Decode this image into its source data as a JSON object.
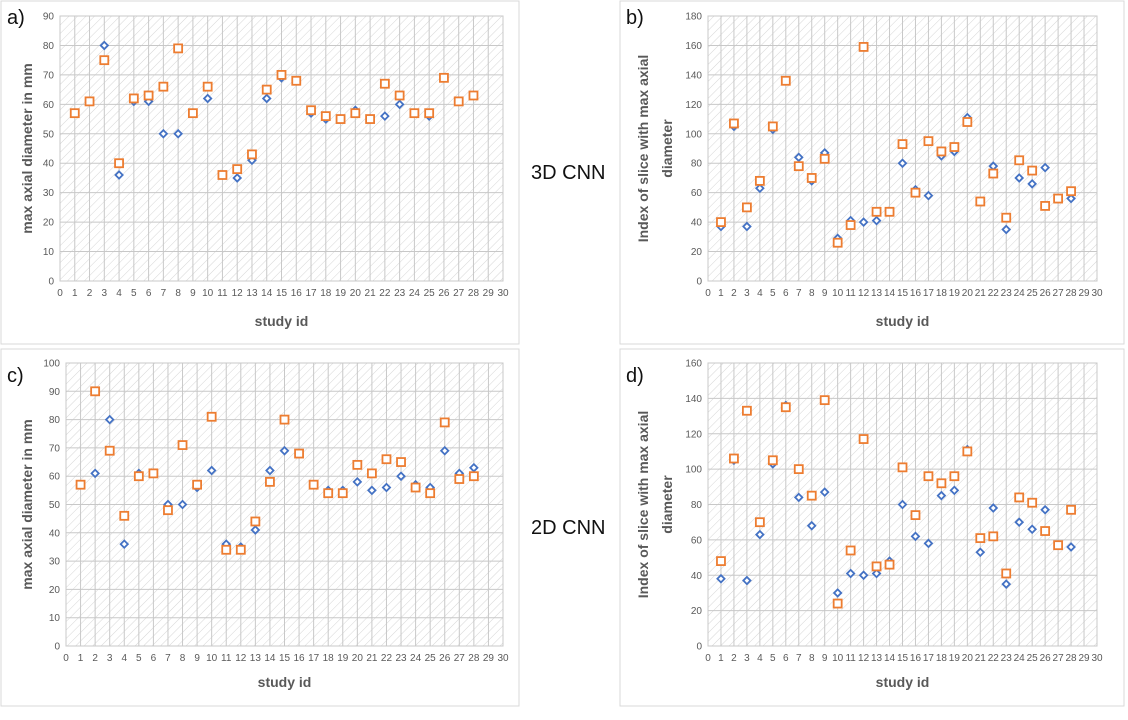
{
  "colors": {
    "blue": "#4472c4",
    "orange": "#ed7d31",
    "grid": "#c8c8c8",
    "panel_border": "#d9d9d9",
    "text": "#595959"
  },
  "middle_labels": [
    "3D CNN",
    "2D CNN"
  ],
  "chart_data": [
    {
      "type": "scatter",
      "panel_label": "a)",
      "xlabel": "study id",
      "ylabel": "max axial diameter in mm",
      "xlim": [
        0,
        30
      ],
      "ylim": [
        0,
        90
      ],
      "ytick_step": 10,
      "x_ticks": [
        "0",
        "1",
        "2",
        "3",
        "4",
        "5",
        "6",
        "7",
        "8",
        "9",
        "10",
        "11",
        "12",
        "13",
        "14",
        "15",
        "16",
        "17",
        "18",
        "19",
        "20",
        "21",
        "22",
        "23",
        "24",
        "25",
        "26",
        "27",
        "28",
        "29",
        "30"
      ],
      "y_ticks": [
        "0",
        "10",
        "20",
        "30",
        "40",
        "50",
        "60",
        "70",
        "80",
        "90"
      ],
      "series": [
        {
          "name": "blue",
          "marker": "diamond",
          "x": [
            1,
            2,
            3,
            4,
            5,
            6,
            7,
            8,
            9,
            10,
            11,
            12,
            13,
            14,
            15,
            16,
            17,
            18,
            19,
            20,
            21,
            22,
            23,
            24,
            25,
            26,
            27,
            28
          ],
          "y": [
            57,
            61,
            80,
            36,
            61,
            61,
            50,
            50,
            57,
            62,
            36,
            35,
            41,
            62,
            69,
            68,
            57,
            55,
            55,
            58,
            55,
            56,
            60,
            57,
            56,
            69,
            61,
            63
          ]
        },
        {
          "name": "orange",
          "marker": "square",
          "x": [
            1,
            2,
            3,
            4,
            5,
            6,
            7,
            8,
            9,
            10,
            11,
            12,
            13,
            14,
            15,
            16,
            17,
            18,
            19,
            20,
            21,
            22,
            23,
            24,
            25,
            26,
            27,
            28
          ],
          "y": [
            57,
            61,
            75,
            40,
            62,
            63,
            66,
            79,
            57,
            66,
            36,
            38,
            43,
            65,
            70,
            68,
            58,
            56,
            55,
            57,
            55,
            67,
            63,
            57,
            57,
            69,
            61,
            63
          ]
        }
      ]
    },
    {
      "type": "scatter",
      "panel_label": "b)",
      "xlabel": "study id",
      "ylabel": "Index of slice with max axial diameter",
      "ylabel_lines": [
        "Index of slice with max axial",
        "diameter"
      ],
      "xlim": [
        0,
        30
      ],
      "ylim": [
        0,
        180
      ],
      "ytick_step": 20,
      "x_ticks": [
        "0",
        "1",
        "2",
        "3",
        "4",
        "5",
        "6",
        "7",
        "8",
        "9",
        "10",
        "11",
        "12",
        "13",
        "14",
        "15",
        "16",
        "17",
        "18",
        "19",
        "20",
        "21",
        "22",
        "23",
        "24",
        "25",
        "26",
        "27",
        "28",
        "29",
        "30"
      ],
      "y_ticks": [
        "0",
        "20",
        "40",
        "60",
        "80",
        "100",
        "120",
        "140",
        "160",
        "180"
      ],
      "series": [
        {
          "name": "blue",
          "marker": "diamond",
          "x": [
            1,
            2,
            3,
            4,
            5,
            6,
            7,
            8,
            9,
            10,
            11,
            12,
            13,
            14,
            15,
            16,
            17,
            18,
            19,
            20,
            21,
            22,
            23,
            24,
            25,
            26,
            27,
            28
          ],
          "y": [
            37,
            105,
            37,
            63,
            103,
            136,
            84,
            68,
            87,
            29,
            41,
            40,
            41,
            47,
            80,
            62,
            58,
            85,
            88,
            111,
            54,
            78,
            35,
            70,
            66,
            77,
            56,
            56
          ]
        },
        {
          "name": "orange",
          "marker": "square",
          "x": [
            1,
            2,
            3,
            4,
            5,
            6,
            7,
            8,
            9,
            10,
            11,
            12,
            13,
            14,
            15,
            16,
            17,
            18,
            19,
            20,
            21,
            22,
            23,
            24,
            25,
            26,
            27,
            28
          ],
          "y": [
            40,
            107,
            50,
            68,
            105,
            136,
            78,
            70,
            83,
            26,
            38,
            159,
            47,
            47,
            93,
            60,
            95,
            88,
            91,
            108,
            54,
            73,
            43,
            82,
            75,
            51,
            56,
            61
          ]
        }
      ]
    },
    {
      "type": "scatter",
      "panel_label": "c)",
      "xlabel": "study id",
      "ylabel": "max axial diameter in mm",
      "xlim": [
        0,
        30
      ],
      "ylim": [
        0,
        100
      ],
      "ytick_step": 10,
      "x_ticks": [
        "0",
        "1",
        "2",
        "3",
        "4",
        "5",
        "6",
        "7",
        "8",
        "9",
        "10",
        "11",
        "12",
        "13",
        "14",
        "15",
        "16",
        "17",
        "18",
        "19",
        "20",
        "21",
        "22",
        "23",
        "24",
        "25",
        "26",
        "27",
        "28",
        "29",
        "30"
      ],
      "y_ticks": [
        "0",
        "10",
        "20",
        "30",
        "40",
        "50",
        "60",
        "70",
        "80",
        "90",
        "100"
      ],
      "series": [
        {
          "name": "blue",
          "marker": "diamond",
          "x": [
            1,
            2,
            3,
            4,
            5,
            6,
            7,
            8,
            9,
            10,
            11,
            12,
            13,
            14,
            15,
            16,
            17,
            18,
            19,
            20,
            21,
            22,
            23,
            24,
            25,
            26,
            27,
            28
          ],
          "y": [
            57,
            61,
            80,
            36,
            61,
            61,
            50,
            50,
            56,
            62,
            36,
            35,
            41,
            62,
            69,
            68,
            57,
            55,
            55,
            58,
            55,
            56,
            60,
            57,
            56,
            69,
            61,
            63
          ]
        },
        {
          "name": "orange",
          "marker": "square",
          "x": [
            1,
            2,
            3,
            4,
            5,
            6,
            7,
            8,
            9,
            10,
            11,
            12,
            13,
            14,
            15,
            16,
            17,
            18,
            19,
            20,
            21,
            22,
            23,
            24,
            25,
            26,
            27,
            28
          ],
          "y": [
            57,
            90,
            69,
            46,
            60,
            61,
            48,
            71,
            57,
            81,
            34,
            34,
            44,
            58,
            80,
            68,
            57,
            54,
            54,
            64,
            61,
            66,
            65,
            56,
            54,
            79,
            59,
            60
          ]
        }
      ]
    },
    {
      "type": "scatter",
      "panel_label": "d)",
      "xlabel": "study id",
      "ylabel": "Index of slice with max axial diameter",
      "ylabel_lines": [
        "Index of slice with max axial",
        "diameter"
      ],
      "xlim": [
        0,
        30
      ],
      "ylim": [
        0,
        160
      ],
      "ytick_step": 20,
      "x_ticks": [
        "0",
        "1",
        "2",
        "3",
        "4",
        "5",
        "6",
        "7",
        "8",
        "9",
        "10",
        "11",
        "12",
        "13",
        "14",
        "15",
        "16",
        "17",
        "18",
        "19",
        "20",
        "21",
        "22",
        "23",
        "24",
        "25",
        "26",
        "27",
        "28",
        "29",
        "30"
      ],
      "y_ticks": [
        "0",
        "20",
        "40",
        "60",
        "80",
        "100",
        "120",
        "140",
        "160"
      ],
      "series": [
        {
          "name": "blue",
          "marker": "diamond",
          "x": [
            1,
            2,
            3,
            4,
            5,
            6,
            7,
            8,
            9,
            10,
            11,
            12,
            13,
            14,
            15,
            16,
            17,
            18,
            19,
            20,
            21,
            22,
            23,
            24,
            25,
            26,
            27,
            28
          ],
          "y": [
            38,
            105,
            37,
            63,
            103,
            136,
            84,
            68,
            87,
            30,
            41,
            40,
            41,
            48,
            80,
            62,
            58,
            85,
            88,
            111,
            53,
            78,
            35,
            70,
            66,
            77,
            57,
            56
          ]
        },
        {
          "name": "orange",
          "marker": "square",
          "x": [
            1,
            2,
            3,
            4,
            5,
            6,
            7,
            8,
            9,
            10,
            11,
            12,
            13,
            14,
            15,
            16,
            17,
            18,
            19,
            20,
            21,
            22,
            23,
            24,
            25,
            26,
            27,
            28
          ],
          "y": [
            48,
            106,
            133,
            70,
            105,
            135,
            100,
            85,
            139,
            24,
            54,
            117,
            45,
            46,
            101,
            74,
            96,
            92,
            96,
            110,
            61,
            62,
            41,
            84,
            81,
            65,
            57,
            77
          ]
        }
      ]
    }
  ]
}
